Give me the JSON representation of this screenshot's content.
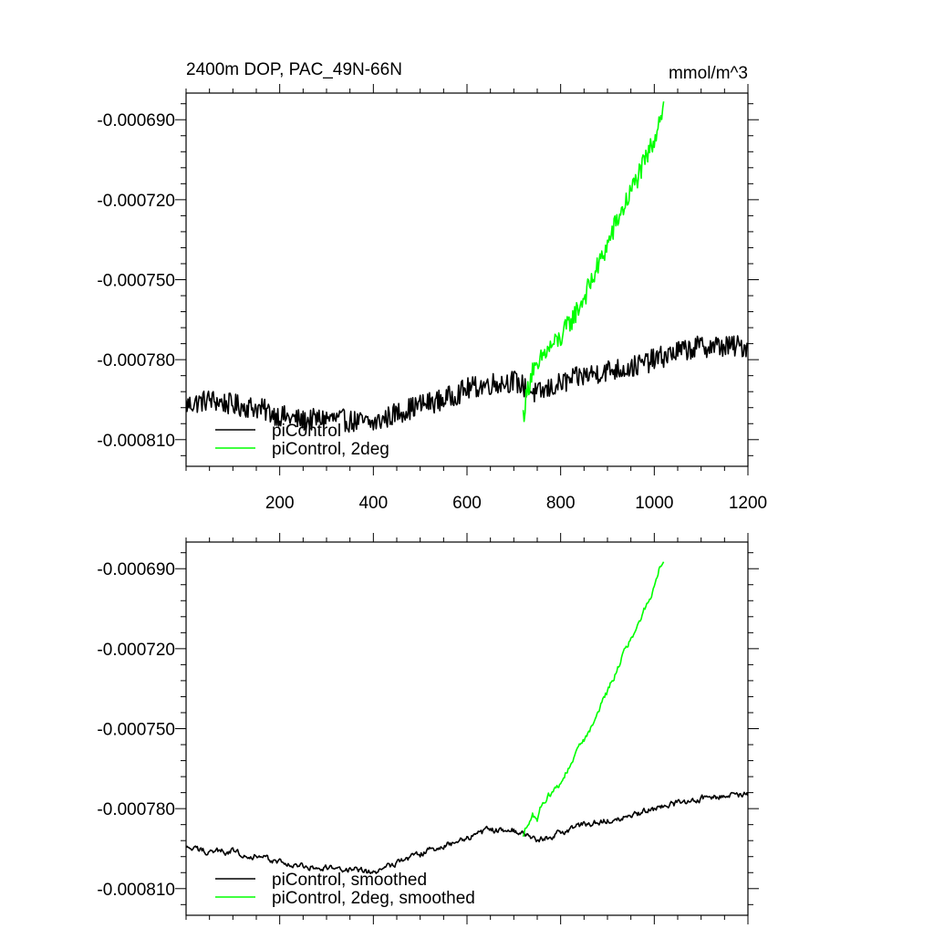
{
  "chart_data": [
    {
      "type": "line",
      "title": "2400m DOP, PAC_49N-66N",
      "units": "mmol/m^3",
      "xlim": [
        0,
        1200
      ],
      "ylim": [
        -0.00082,
        -0.00068
      ],
      "xticks": [
        200,
        400,
        600,
        800,
        1000,
        1200
      ],
      "xtick_labels": [
        "200",
        "400",
        "600",
        "800",
        "1000",
        "1200"
      ],
      "yticks": [
        -0.00069,
        -0.00072,
        -0.00075,
        -0.00078,
        -0.00081
      ],
      "ytick_labels": [
        "-0.000690",
        "-0.000720",
        "-0.000750",
        "-0.000780",
        "-0.000810"
      ],
      "legend_position": "bottom-left",
      "series": [
        {
          "name": "piControl",
          "color": "#000000",
          "x": [
            0,
            50,
            100,
            150,
            200,
            250,
            300,
            350,
            400,
            450,
            500,
            550,
            600,
            650,
            700,
            750,
            800,
            850,
            900,
            950,
            1000,
            1050,
            1100,
            1150,
            1200
          ],
          "y": [
            -0.000797,
            -0.000795,
            -0.000797,
            -0.000798,
            -0.000801,
            -0.000803,
            -0.000802,
            -0.000803,
            -0.000804,
            -0.0008,
            -0.000797,
            -0.000795,
            -0.000791,
            -0.000789,
            -0.000788,
            -0.000793,
            -0.000789,
            -0.000786,
            -0.000784,
            -0.000783,
            -0.00078,
            -0.000777,
            -0.000775,
            -0.000775,
            -0.000775
          ]
        },
        {
          "name": "piControl, 2deg",
          "color": "#00ff00",
          "x": [
            720,
            730,
            740,
            750,
            760,
            780,
            800,
            820,
            840,
            860,
            880,
            900,
            920,
            940,
            960,
            980,
            1000,
            1010,
            1020
          ],
          "y": [
            -0.000801,
            -0.000791,
            -0.000783,
            -0.000785,
            -0.000779,
            -0.000775,
            -0.000772,
            -0.000766,
            -0.00076,
            -0.000753,
            -0.000745,
            -0.000737,
            -0.000728,
            -0.000721,
            -0.000713,
            -0.000706,
            -0.000697,
            -0.00069,
            -0.000685
          ]
        }
      ]
    },
    {
      "type": "line",
      "xlim": [
        0,
        1200
      ],
      "ylim": [
        -0.00082,
        -0.00068
      ],
      "xticks": [
        200,
        400,
        600,
        800,
        1000,
        1200
      ],
      "yticks": [
        -0.00069,
        -0.00072,
        -0.00075,
        -0.00078,
        -0.00081
      ],
      "ytick_labels": [
        "-0.000690",
        "-0.000720",
        "-0.000750",
        "-0.000780",
        "-0.000810"
      ],
      "legend_position": "bottom-left",
      "series": [
        {
          "name": "piControl, smoothed",
          "color": "#000000",
          "x": [
            0,
            50,
            100,
            150,
            200,
            250,
            300,
            350,
            400,
            450,
            500,
            550,
            600,
            650,
            700,
            750,
            800,
            850,
            900,
            950,
            1000,
            1050,
            1100,
            1150,
            1200
          ],
          "y": [
            -0.000795,
            -0.000796,
            -0.000796,
            -0.000798,
            -0.0008,
            -0.000802,
            -0.000802,
            -0.000803,
            -0.000804,
            -0.0008,
            -0.000797,
            -0.000794,
            -0.000791,
            -0.000788,
            -0.000788,
            -0.000792,
            -0.000789,
            -0.000786,
            -0.000784,
            -0.000783,
            -0.00078,
            -0.000778,
            -0.000776,
            -0.000775,
            -0.000775
          ]
        },
        {
          "name": "piControl, 2deg, smoothed",
          "color": "#00ff00",
          "x": [
            720,
            730,
            740,
            750,
            760,
            780,
            800,
            820,
            840,
            860,
            880,
            900,
            920,
            940,
            960,
            980,
            1000,
            1010,
            1020
          ],
          "y": [
            -0.000791,
            -0.000785,
            -0.000782,
            -0.000784,
            -0.000778,
            -0.000774,
            -0.00077,
            -0.000764,
            -0.000757,
            -0.000751,
            -0.000744,
            -0.000736,
            -0.000728,
            -0.00072,
            -0.000713,
            -0.000705,
            -0.000697,
            -0.00069,
            -0.000686
          ]
        }
      ]
    }
  ]
}
